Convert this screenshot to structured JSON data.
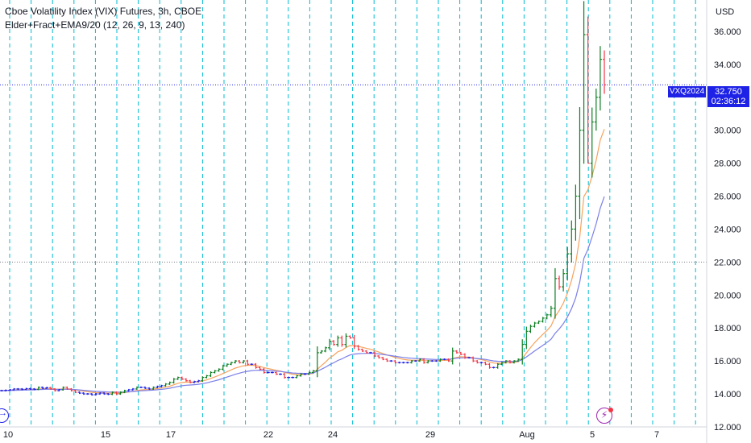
{
  "legend": {
    "title": "Cboe Volatility Index (VIX) Futures, 3h, CBOE",
    "indicator": "Elder+Fract+EMA9/20 (12, 26, 9, 13, 240)"
  },
  "axis": {
    "currency": "USD",
    "price_label": "32.750",
    "countdown": "02:36:12",
    "symbol": "VXQ2024"
  },
  "icons": {
    "nav": "arrow-right-icon",
    "alert": "lightning-icon"
  },
  "colors": {
    "up": "#089981",
    "up_bar": "#0b7d20",
    "down_bar": "#f23645",
    "neutral_bar": "#1e22e6",
    "ema_fast": "#f7a35c",
    "ema_slow": "#7b7fe8",
    "session_line": "#00bcd4",
    "price_line": "#1e22e6"
  },
  "chart_data": {
    "type": "ohlc",
    "x_tick_labels": [
      "10",
      "15",
      "17",
      "22",
      "24",
      "29",
      "Aug",
      "5",
      "7"
    ],
    "y_ticks": [
      "12.000",
      "14.000",
      "16.000",
      "18.000",
      "20.000",
      "22.000",
      "24.000",
      "26.000",
      "28.000",
      "30.000",
      "32.000",
      "34.000",
      "36.000"
    ],
    "ylim": [
      12,
      37.9
    ],
    "horizontal_levels": [
      22.0,
      32.75
    ],
    "last_price": 32.75,
    "series": [
      {
        "values": [
          14.2,
          14.22,
          14.25,
          14.3,
          14.3,
          14.28,
          14.32,
          14.3,
          14.28,
          14.4,
          14.35,
          14.38,
          14.3,
          14.2,
          14.25,
          14.4,
          14.3,
          14.2,
          14.1,
          14.05,
          14.0,
          14.0,
          13.95,
          14.0,
          14.05,
          14.0,
          13.98,
          14.1,
          14.0,
          14.1,
          14.2,
          14.25,
          14.3,
          14.4,
          14.4,
          14.35,
          14.3,
          14.4,
          14.45,
          14.5,
          14.6,
          14.7,
          14.9,
          15.0,
          14.9,
          14.8,
          14.7,
          14.75,
          14.8,
          15.0,
          15.1,
          15.3,
          15.4,
          15.5,
          15.7,
          15.8,
          15.9,
          16.0,
          15.9,
          16.0,
          15.8,
          15.8,
          15.6,
          15.5,
          15.3,
          15.3,
          15.3,
          15.2,
          15.2,
          15.0,
          15.0,
          15.0,
          15.1,
          15.2,
          15.2,
          15.3,
          15.4,
          16.5,
          16.6,
          16.8,
          17.2,
          17.0,
          17.4,
          17.0,
          17.5,
          17.4,
          16.9,
          16.7,
          16.6,
          16.5,
          16.5,
          16.3,
          16.2,
          16.1,
          16.0,
          16.0,
          15.9,
          15.9,
          15.9,
          15.9,
          16.0,
          16.0,
          16.1,
          15.9,
          16.0,
          16.0,
          16.0,
          16.1,
          16.1,
          16.0,
          16.6,
          16.5,
          16.4,
          16.2,
          16.2,
          16.0,
          15.9,
          15.9,
          15.8,
          15.6,
          15.6,
          15.8,
          15.9,
          16.0,
          15.9,
          16.0,
          16.1,
          17.0,
          17.8,
          18.1,
          18.3,
          18.4,
          18.6,
          18.8,
          19.2,
          21.0,
          20.5,
          21.3,
          22.5,
          24.0,
          26.0,
          30.0,
          35.8,
          28.0,
          30.5,
          32.0,
          34.3,
          32.75
        ]
      }
    ]
  }
}
